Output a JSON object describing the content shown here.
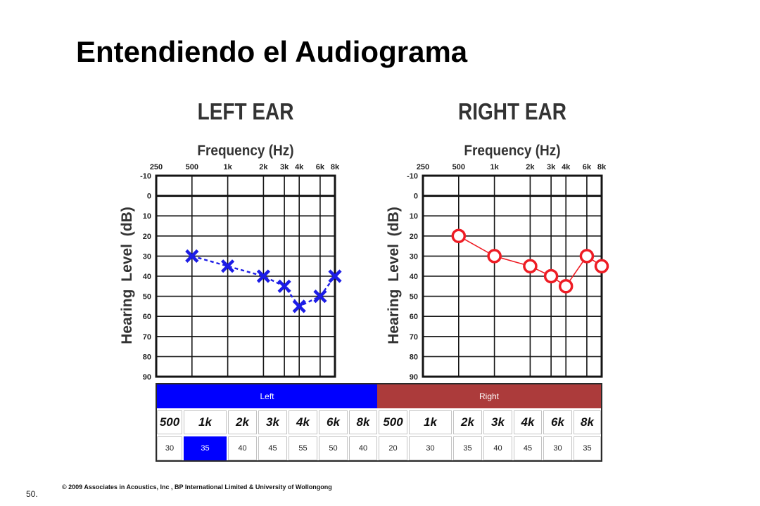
{
  "slide": {
    "title": "Entendiendo el Audiograma",
    "page_number": "50.",
    "copyright": "© 2009 Associates in Acoustics, Inc , BP International Limited & University of Wollongong"
  },
  "chart_data": [
    {
      "type": "line",
      "title": "LEFT EAR",
      "xlabel": "Frequency (Hz)",
      "ylabel": "Hearing Level (dB)",
      "x_scale": "log",
      "x_axis_position": "top",
      "x_ticks": [
        250,
        500,
        1000,
        2000,
        3000,
        4000,
        6000,
        8000
      ],
      "x_tick_labels": [
        "250",
        "500",
        "1k",
        "2k",
        "3k",
        "4k",
        "6k",
        "8k"
      ],
      "y_ticks": [
        -10,
        0,
        10,
        20,
        30,
        40,
        50,
        60,
        70,
        80,
        90
      ],
      "ylim": [
        -10,
        90
      ],
      "y_inverted": true,
      "grid": true,
      "series": [
        {
          "marker": "x",
          "line_style": "dashed",
          "color": "#1c1ce6",
          "x": [
            500,
            1000,
            2000,
            3000,
            4000,
            6000,
            8000
          ],
          "y": [
            30,
            35,
            40,
            45,
            55,
            50,
            40
          ]
        }
      ]
    },
    {
      "type": "line",
      "title": "RIGHT EAR",
      "xlabel": "Frequency (Hz)",
      "ylabel": "Hearing Level (dB)",
      "x_scale": "log",
      "x_axis_position": "top",
      "x_ticks": [
        250,
        500,
        1000,
        2000,
        3000,
        4000,
        6000,
        8000
      ],
      "x_tick_labels": [
        "250",
        "500",
        "1k",
        "2k",
        "3k",
        "4k",
        "6k",
        "8k"
      ],
      "y_ticks": [
        -10,
        0,
        10,
        20,
        30,
        40,
        50,
        60,
        70,
        80,
        90
      ],
      "ylim": [
        -10,
        90
      ],
      "y_inverted": true,
      "grid": true,
      "series": [
        {
          "marker": "circle",
          "line_style": "solid",
          "color": "#ee1c24",
          "x": [
            500,
            1000,
            2000,
            3000,
            4000,
            6000,
            8000
          ],
          "y": [
            20,
            30,
            35,
            40,
            45,
            30,
            35
          ]
        }
      ]
    }
  ],
  "table": {
    "groups": [
      {
        "label": "Left",
        "color": "#0000ff",
        "frequencies": [
          "500",
          "1k",
          "2k",
          "3k",
          "4k",
          "6k",
          "8k"
        ],
        "values": [
          "30",
          "35",
          "40",
          "45",
          "55",
          "50",
          "40"
        ]
      },
      {
        "label": "Right",
        "color": "#ac3b3b",
        "frequencies": [
          "500",
          "1k",
          "2k",
          "3k",
          "4k",
          "6k",
          "8k"
        ],
        "values": [
          "20",
          "30",
          "35",
          "40",
          "45",
          "30",
          "35"
        ]
      }
    ],
    "selected_cell": {
      "group": 0,
      "index": 1,
      "color": "#0000ff"
    }
  }
}
